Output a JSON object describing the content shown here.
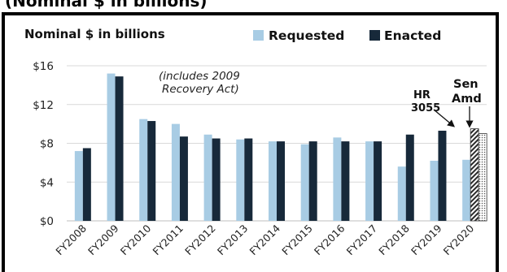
{
  "header_partial_text": "(Nominal $ in billions)",
  "colors": {
    "requested": "#a8cce4",
    "enacted": "#17293a",
    "grid": "#d9d9d9",
    "axis": "#bfbfbf"
  },
  "chart_data": {
    "type": "bar",
    "title": "",
    "ylabel": "Nominal $ in billions",
    "xlabel": "",
    "ylim": [
      0,
      16
    ],
    "yticks": [
      0,
      4,
      8,
      12,
      16
    ],
    "ytick_labels": [
      "$0",
      "$4",
      "$8",
      "$12",
      "$16"
    ],
    "grid": true,
    "legend_position": "top-right",
    "categories": [
      "FY2008",
      "FY2009",
      "FY2010",
      "FY2011",
      "FY2012",
      "FY2013",
      "FY2014",
      "FY2015",
      "FY2016",
      "FY2017",
      "FY2018",
      "FY2019",
      "FY2020"
    ],
    "series": [
      {
        "name": "Requested",
        "values": [
          7.2,
          15.2,
          10.5,
          10.0,
          8.9,
          8.4,
          8.2,
          7.9,
          8.6,
          8.2,
          5.6,
          6.2,
          6.3
        ]
      },
      {
        "name": "Enacted",
        "values": [
          7.5,
          14.9,
          10.3,
          8.7,
          8.5,
          8.5,
          8.2,
          8.2,
          8.2,
          8.2,
          8.9,
          9.3,
          null
        ]
      }
    ],
    "fy2020_proposals": [
      {
        "label": "HR 3055",
        "value": 9.5,
        "pattern": "hatch"
      },
      {
        "label": "Sen Amd",
        "value": 9.0,
        "pattern": "dots"
      }
    ],
    "annotations": {
      "recovery_note_line1": "(includes 2009",
      "recovery_note_line2": "Recovery Act)",
      "hr_line1": "HR",
      "hr_line2": "3055",
      "sen_line1": "Sen",
      "sen_line2": "Amd"
    }
  }
}
